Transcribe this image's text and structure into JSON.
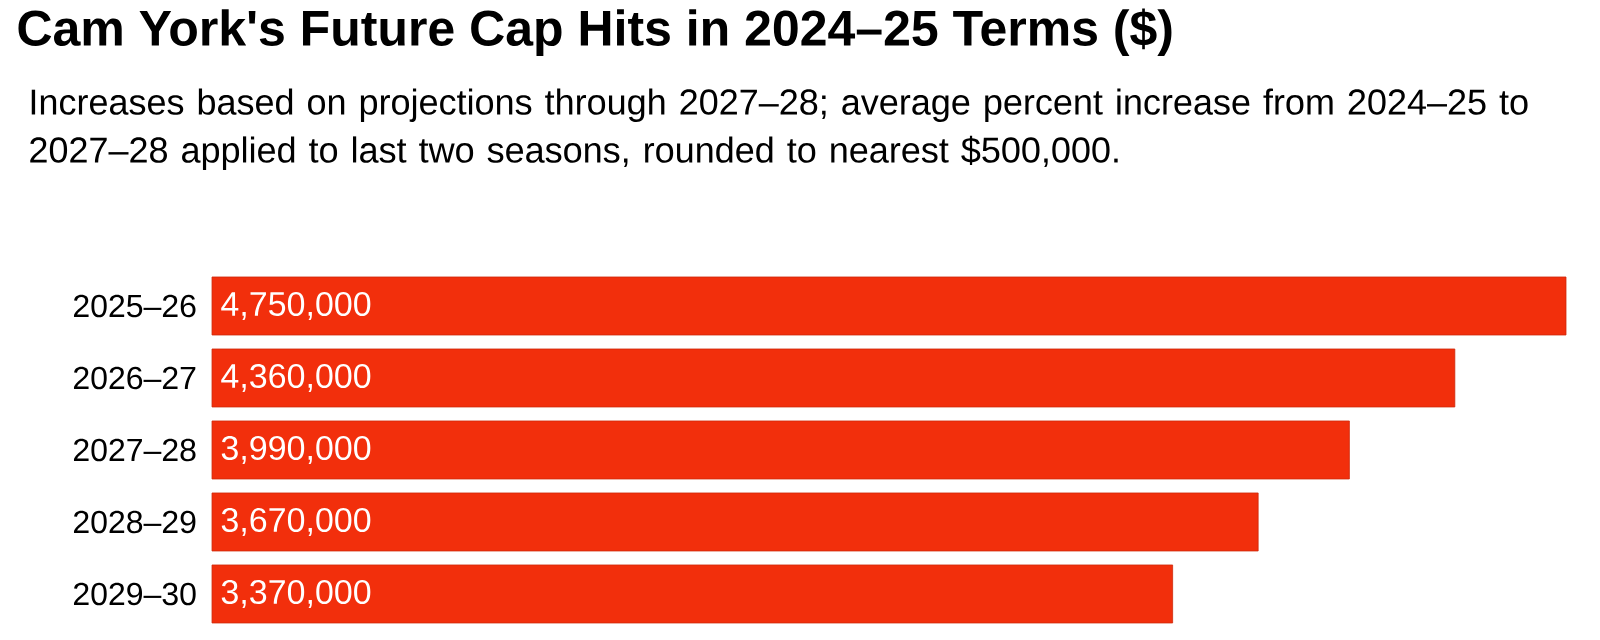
{
  "chart_data": {
    "type": "bar",
    "orientation": "horizontal",
    "title": "Cam York's Future Cap Hits in 2024–25 Terms ($)",
    "subtitle": "Increases based on projections through 2027–28; average percent increase from 2024–25 to 2027–28 applied to last two seasons, rounded to nearest $500,000.",
    "categories": [
      "2025–26",
      "2026–27",
      "2027–28",
      "2028–29",
      "2029–30"
    ],
    "values": [
      4750000,
      4360000,
      3990000,
      3670000,
      3370000
    ],
    "value_labels": [
      "4,750,000",
      "4,360,000",
      "3,990,000",
      "3,670,000",
      "3,370,000"
    ],
    "color": "#f22f0c"
  }
}
